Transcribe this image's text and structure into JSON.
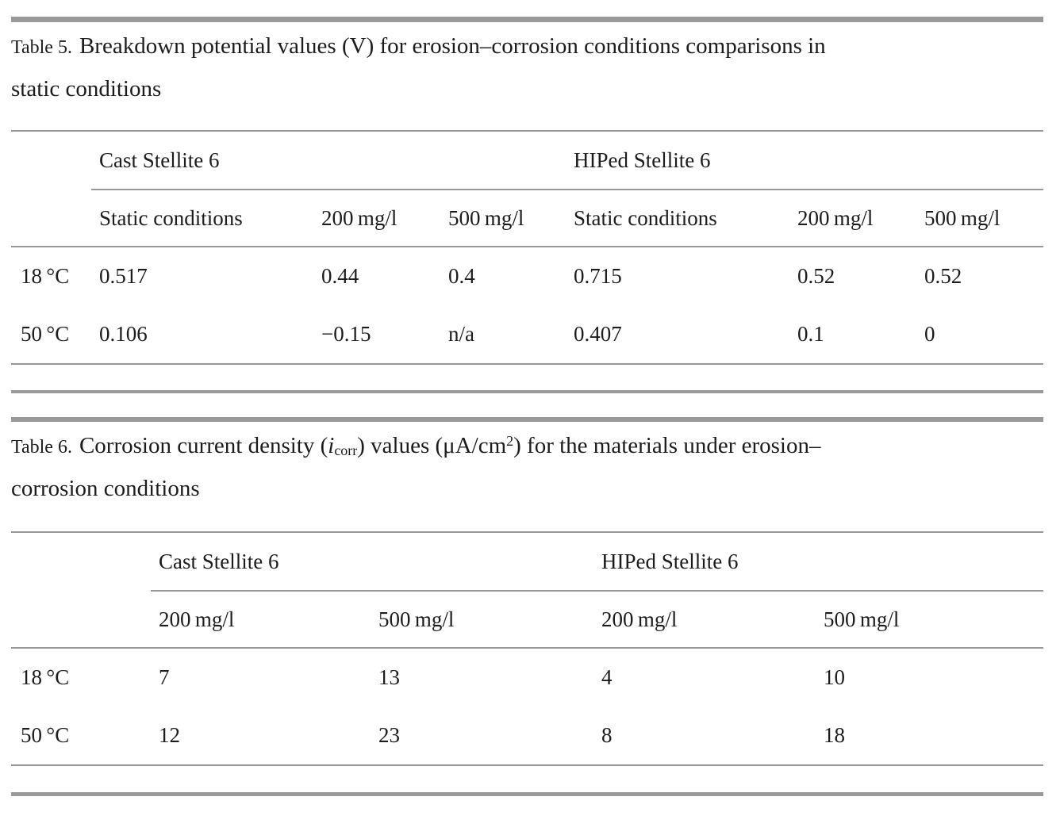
{
  "page": {
    "background": "#ffffff",
    "text_color": "#1c1c1c",
    "rule_color": "#979797"
  },
  "table5": {
    "label": "Table 5.",
    "caption_line1": "Breakdown potential values (V) for erosion–corrosion conditions comparisons in",
    "caption_line2": "static conditions",
    "group_headers": [
      "Cast Stellite 6",
      "HIPed Stellite 6"
    ],
    "col_headers": [
      "Static conditions",
      "200 mg/l",
      "500 mg/l",
      "Static conditions",
      "200 mg/l",
      "500 mg/l"
    ],
    "rows": [
      {
        "label": "18 °C",
        "values": [
          "0.517",
          "0.44",
          "0.4",
          "0.715",
          "0.52",
          "0.52"
        ]
      },
      {
        "label": "50 °C",
        "values": [
          "0.106",
          "−0.15",
          "n/a",
          "0.407",
          "0.1",
          "0"
        ]
      }
    ]
  },
  "table6": {
    "label": "Table 6.",
    "caption_line1_parts": [
      {
        "style": "plain",
        "text": "Corrosion current density ("
      },
      {
        "style": "italic",
        "text": "i"
      },
      {
        "style": "sub",
        "text": "corr"
      },
      {
        "style": "plain",
        "text": ") values (μA/cm"
      },
      {
        "style": "sup",
        "text": "2"
      },
      {
        "style": "plain",
        "text": ") for the materials under erosion–"
      }
    ],
    "caption_line2": "corrosion conditions",
    "group_headers": [
      "Cast Stellite 6",
      "HIPed Stellite 6"
    ],
    "col_headers": [
      "200 mg/l",
      "500 mg/l",
      "200 mg/l",
      "500 mg/l"
    ],
    "rows": [
      {
        "label": "18 °C",
        "values": [
          "7",
          "13",
          "4",
          "10"
        ]
      },
      {
        "label": "50 °C",
        "values": [
          "12",
          "23",
          "8",
          "18"
        ]
      }
    ]
  }
}
